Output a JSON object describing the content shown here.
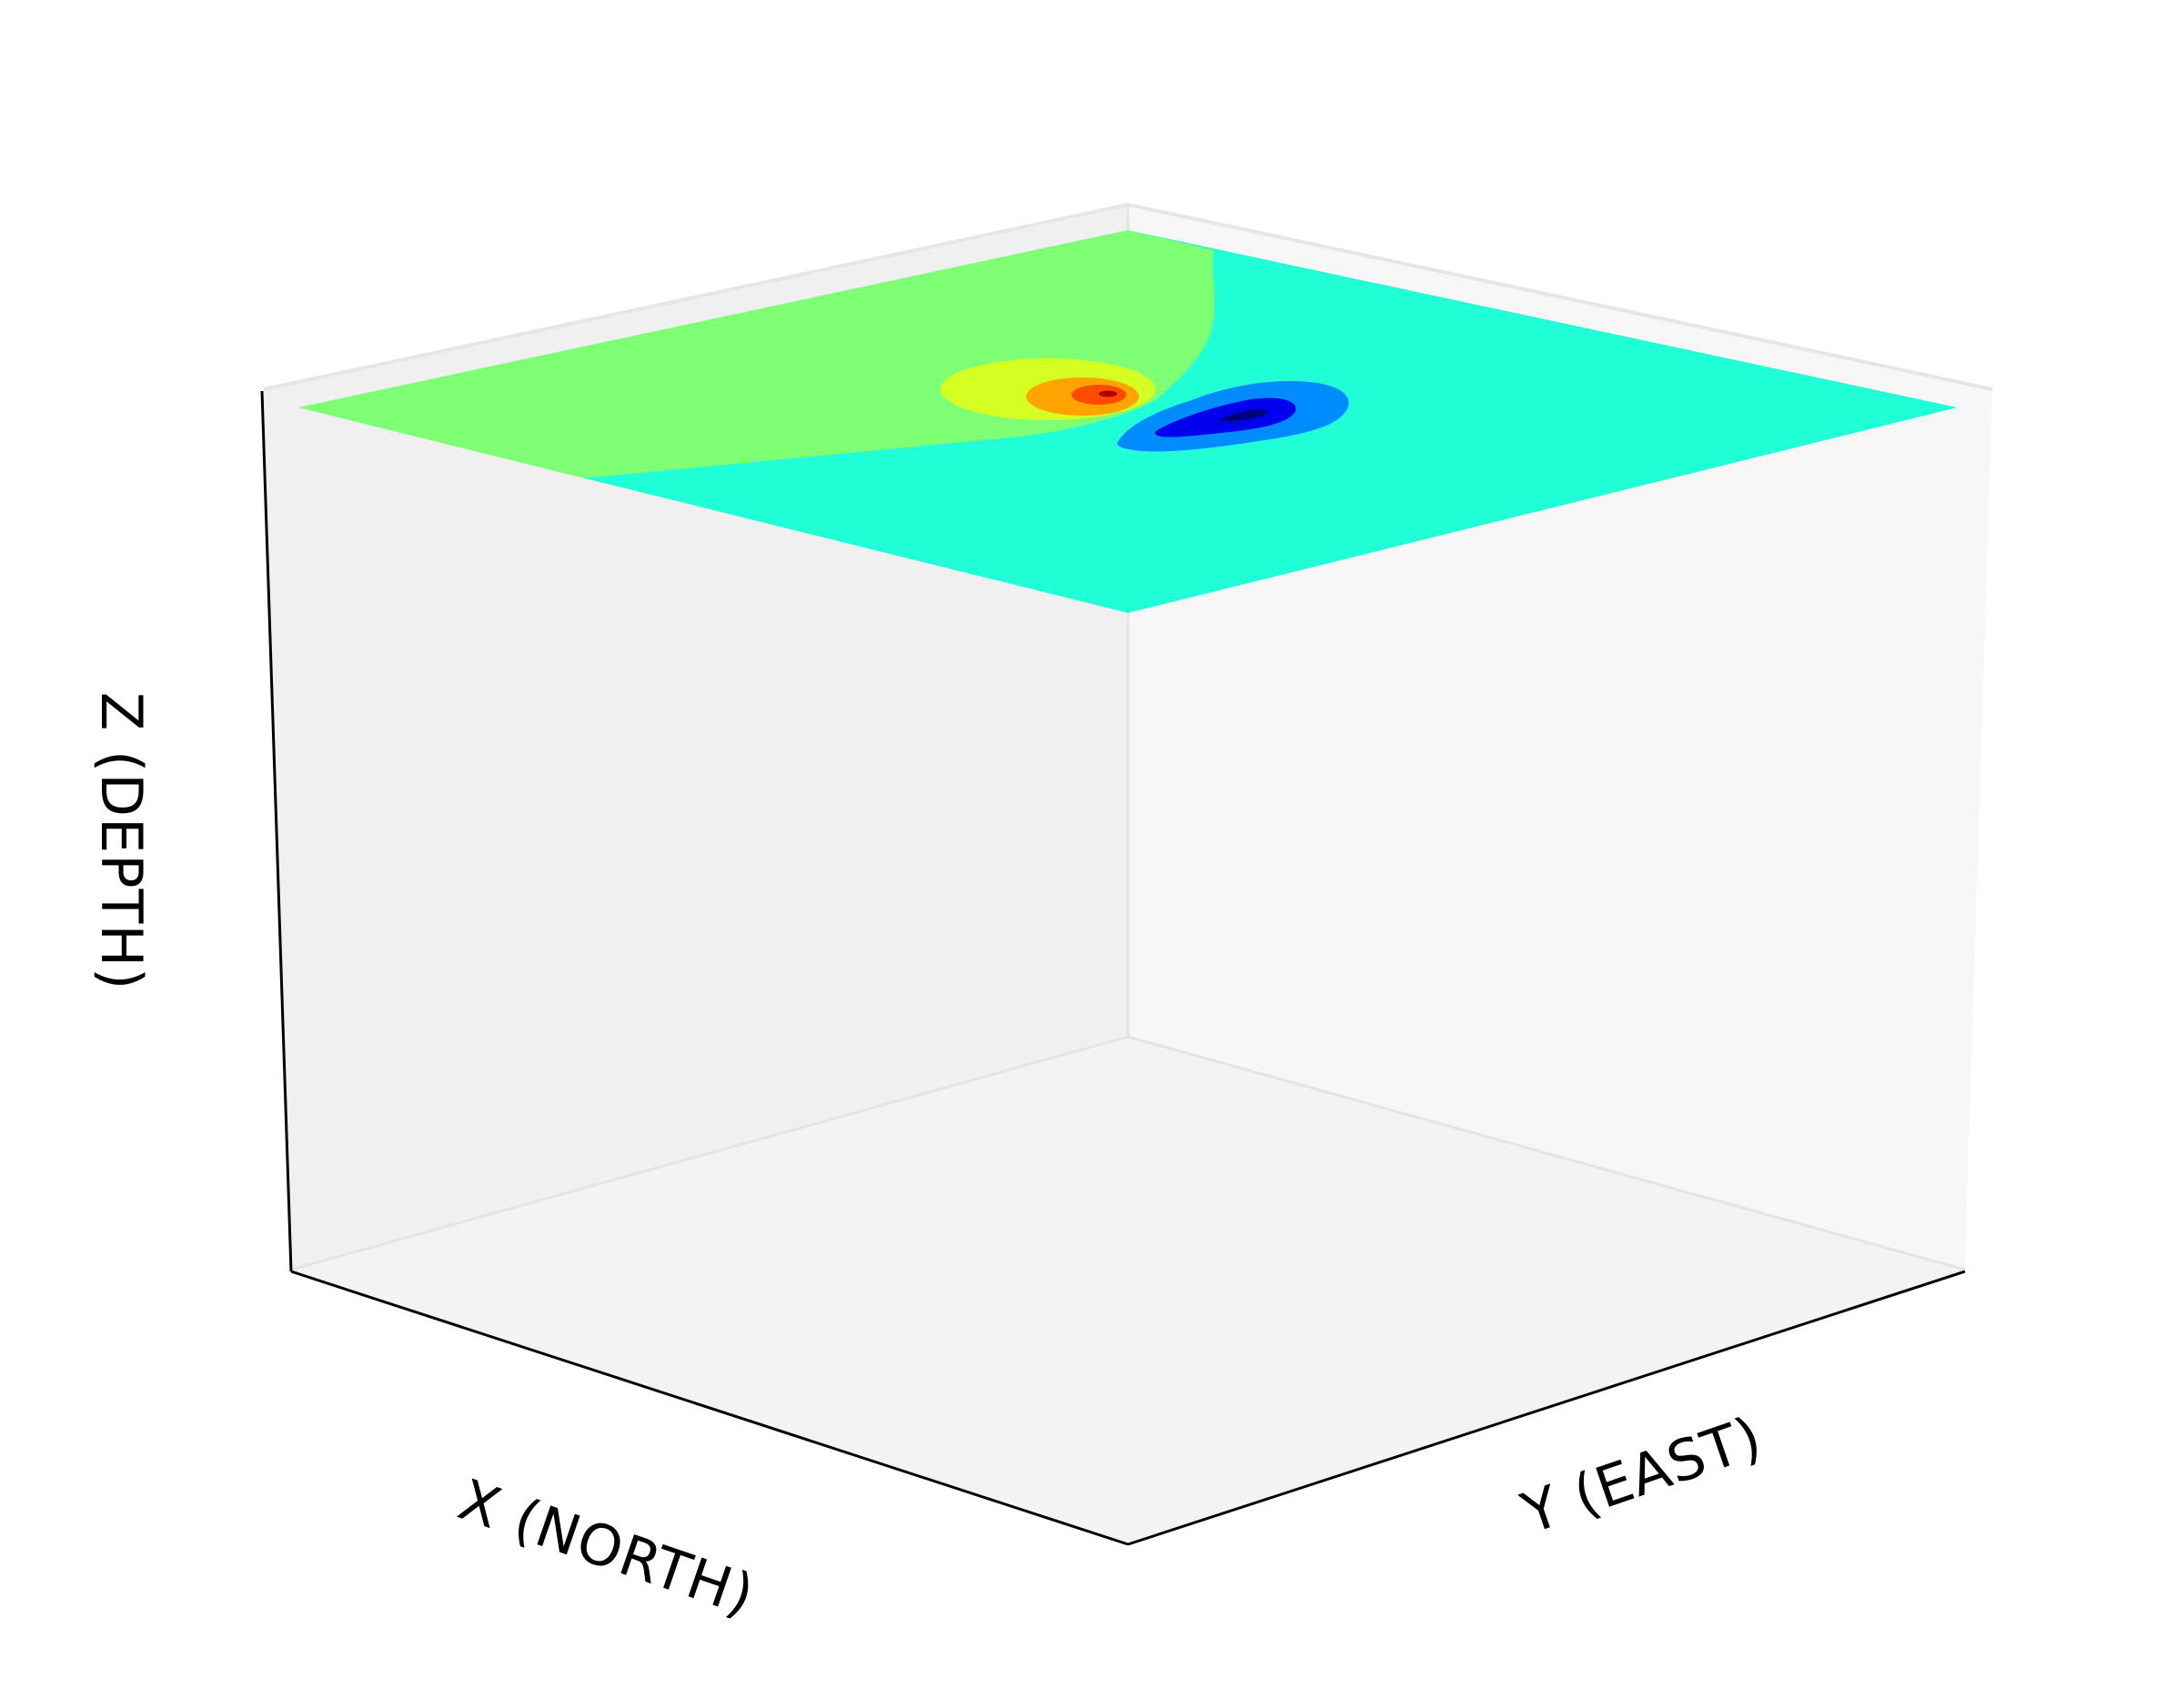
{
  "chart_data": {
    "type": "3d-surface-contour",
    "title": "",
    "xlabel": "X (NORTH)",
    "ylabel": "Y (EAST)",
    "zlabel": "Z (DEPTH)",
    "grid": false,
    "ticks": false,
    "legend": "none",
    "pane_colors": {
      "left_wall": "#f0f0f0",
      "right_wall": "#f7f7f7",
      "floor": "#f3f3f3",
      "axis_line": "#000000"
    },
    "surface": {
      "colormap": "jet",
      "background_levels": [
        {
          "name": "green-region",
          "color": "#7fff74"
        },
        {
          "name": "cyan-region",
          "color": "#20ffd6"
        }
      ],
      "positive_anomaly": {
        "levels": [
          {
            "color": "#d5ff21"
          },
          {
            "color": "#ffa400"
          },
          {
            "color": "#ff4a00"
          },
          {
            "color": "#b30000"
          }
        ]
      },
      "negative_anomaly": {
        "levels": [
          {
            "color": "#008cff"
          },
          {
            "color": "#0000ed"
          },
          {
            "color": "#00007f"
          }
        ]
      }
    }
  }
}
